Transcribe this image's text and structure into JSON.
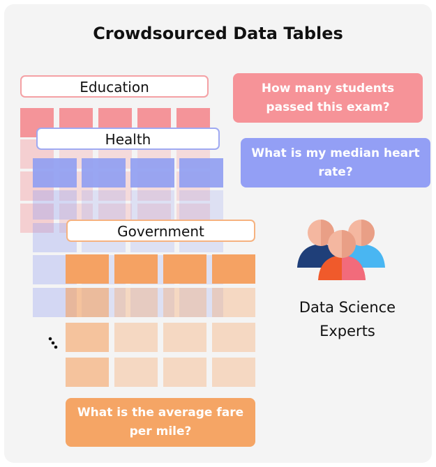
{
  "title": "Crowdsourced Data Tables",
  "tables": {
    "education": {
      "label": "Education",
      "color": "#f48a8f"
    },
    "health": {
      "label": "Health",
      "color": "#8f9df2"
    },
    "government": {
      "label": "Government",
      "color": "#f5a263"
    }
  },
  "questions": {
    "education": "How many students passed this exam?",
    "health": "What is my median heart rate?",
    "government": "What is the average fare per mile?"
  },
  "experts": {
    "label": "Data Science Experts",
    "icon": "people-group-icon"
  },
  "ellipsis_icon": "vertical-ellipsis-icon"
}
